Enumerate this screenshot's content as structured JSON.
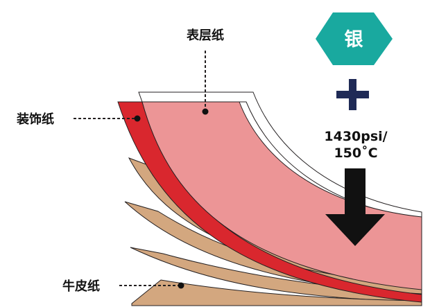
{
  "labels": {
    "surface_paper": "表层纸",
    "decor_paper": "装饰纸",
    "kraft_paper": "牛皮纸"
  },
  "badge": {
    "text": "银",
    "icon": "hexagon-icon",
    "color": "#19a99f"
  },
  "plus": {
    "icon": "plus-icon",
    "color": "#1f2a56"
  },
  "pressure": {
    "line1": "1430psi/",
    "line2": "150˚C",
    "arrow_icon": "down-arrow-icon"
  },
  "colors": {
    "surface": "#ec9596",
    "decor": "#d9272e",
    "kraft": "#d3a77f",
    "outline": "#231f20"
  }
}
